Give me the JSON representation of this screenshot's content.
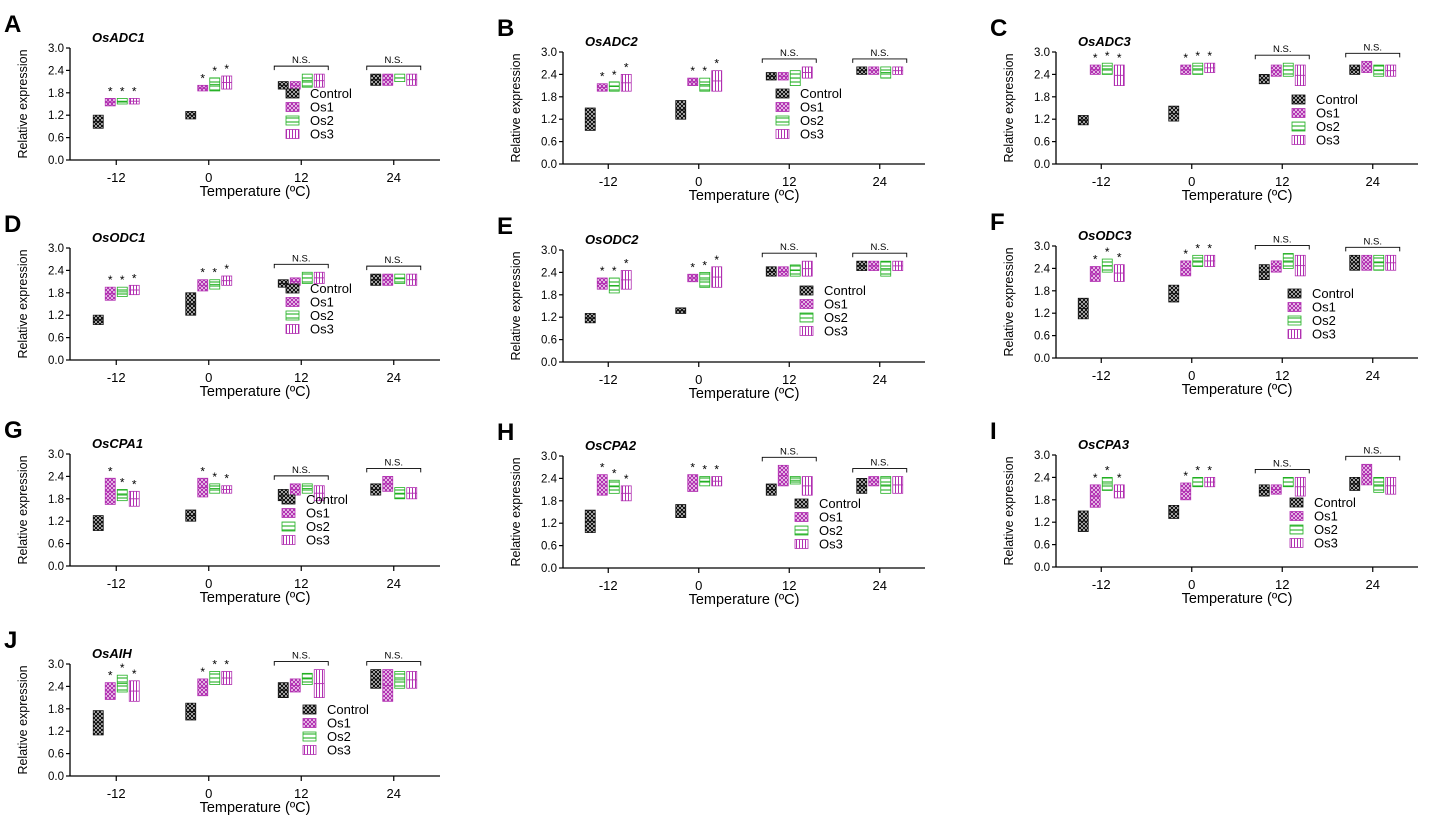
{
  "colors": {
    "control": "#111111",
    "os1": "#b12fb1",
    "os2": "#22b022",
    "os3": "#b12fb1",
    "axis": "#000000"
  },
  "common": {
    "ylabel": "Relative expression",
    "xlabel": "Temperature (ºC)",
    "categories": [
      "-12",
      "0",
      "12",
      "24"
    ],
    "yticks": [
      "0.0",
      "0.6",
      "1.2",
      "1.8",
      "2.4",
      "3.0"
    ],
    "ylim": [
      0,
      3.0
    ],
    "legend": [
      "Control",
      "Os1",
      "Os2",
      "Os3"
    ],
    "sig_mark": "*",
    "ns_label": "N.S."
  },
  "chart_data": [
    {
      "type": "bar",
      "panel": "A",
      "title": "OsADC1",
      "categories": [
        "-12",
        "0",
        "12",
        "24"
      ],
      "series": [
        {
          "name": "Control",
          "values": [
            [
              0.85,
              1.2
            ],
            [
              1.1,
              1.3
            ],
            [
              1.9,
              2.1
            ],
            [
              2.0,
              2.3
            ]
          ]
        },
        {
          "name": "Os1",
          "values": [
            [
              1.45,
              1.65
            ],
            [
              1.85,
              2.0
            ],
            [
              1.9,
              2.1
            ],
            [
              2.0,
              2.3
            ]
          ]
        },
        {
          "name": "Os2",
          "values": [
            [
              1.5,
              1.65
            ],
            [
              1.85,
              2.2
            ],
            [
              1.95,
              2.3
            ],
            [
              2.1,
              2.3
            ]
          ]
        },
        {
          "name": "Os3",
          "values": [
            [
              1.5,
              1.65
            ],
            [
              1.9,
              2.25
            ],
            [
              1.95,
              2.3
            ],
            [
              2.0,
              2.3
            ]
          ]
        }
      ],
      "significance": [
        "*",
        "*",
        "N.S.",
        "N.S."
      ]
    },
    {
      "type": "bar",
      "panel": "B",
      "title": "OsADC2",
      "categories": [
        "-12",
        "0",
        "12",
        "24"
      ],
      "series": [
        {
          "name": "Control",
          "values": [
            [
              0.9,
              1.5
            ],
            [
              1.2,
              1.7
            ],
            [
              2.25,
              2.45
            ],
            [
              2.4,
              2.6
            ]
          ]
        },
        {
          "name": "Os1",
          "values": [
            [
              1.95,
              2.15
            ],
            [
              2.1,
              2.3
            ],
            [
              2.25,
              2.45
            ],
            [
              2.4,
              2.6
            ]
          ]
        },
        {
          "name": "Os2",
          "values": [
            [
              1.95,
              2.2
            ],
            [
              1.95,
              2.3
            ],
            [
              2.1,
              2.5
            ],
            [
              2.3,
              2.6
            ]
          ]
        },
        {
          "name": "Os3",
          "values": [
            [
              1.95,
              2.4
            ],
            [
              1.95,
              2.5
            ],
            [
              2.3,
              2.6
            ],
            [
              2.4,
              2.6
            ]
          ]
        }
      ],
      "significance": [
        "*",
        "*",
        "N.S.",
        "N.S."
      ]
    },
    {
      "type": "bar",
      "panel": "C",
      "title": "OsADC3",
      "categories": [
        "-12",
        "0",
        "12",
        "24"
      ],
      "series": [
        {
          "name": "Control",
          "values": [
            [
              1.05,
              1.3
            ],
            [
              1.15,
              1.55
            ],
            [
              2.15,
              2.4
            ],
            [
              2.4,
              2.65
            ]
          ]
        },
        {
          "name": "Os1",
          "values": [
            [
              2.4,
              2.65
            ],
            [
              2.4,
              2.65
            ],
            [
              2.35,
              2.65
            ],
            [
              2.45,
              2.75
            ]
          ]
        },
        {
          "name": "Os2",
          "values": [
            [
              2.4,
              2.7
            ],
            [
              2.4,
              2.7
            ],
            [
              2.35,
              2.7
            ],
            [
              2.35,
              2.65
            ]
          ]
        },
        {
          "name": "Os3",
          "values": [
            [
              2.1,
              2.65
            ],
            [
              2.45,
              2.7
            ],
            [
              2.1,
              2.65
            ],
            [
              2.35,
              2.65
            ]
          ]
        }
      ],
      "significance": [
        "*",
        "*",
        "N.S.",
        "N.S."
      ]
    },
    {
      "type": "bar",
      "panel": "D",
      "title": "OsODC1",
      "categories": [
        "-12",
        "0",
        "12",
        "24"
      ],
      "series": [
        {
          "name": "Control",
          "values": [
            [
              0.95,
              1.2
            ],
            [
              1.2,
              1.8
            ],
            [
              1.95,
              2.15
            ],
            [
              2.0,
              2.3
            ]
          ]
        },
        {
          "name": "Os1",
          "values": [
            [
              1.6,
              1.95
            ],
            [
              1.85,
              2.15
            ],
            [
              2.0,
              2.2
            ],
            [
              2.0,
              2.3
            ]
          ]
        },
        {
          "name": "Os2",
          "values": [
            [
              1.7,
              1.95
            ],
            [
              1.9,
              2.15
            ],
            [
              2.05,
              2.35
            ],
            [
              2.05,
              2.3
            ]
          ]
        },
        {
          "name": "Os3",
          "values": [
            [
              1.75,
              2.0
            ],
            [
              2.0,
              2.25
            ],
            [
              2.05,
              2.35
            ],
            [
              2.0,
              2.3
            ]
          ]
        }
      ],
      "significance": [
        "*",
        "*",
        "N.S.",
        "N.S."
      ]
    },
    {
      "type": "bar",
      "panel": "E",
      "title": "OsODC2",
      "categories": [
        "-12",
        "0",
        "12",
        "24"
      ],
      "series": [
        {
          "name": "Control",
          "values": [
            [
              1.05,
              1.3
            ],
            [
              1.3,
              1.45
            ],
            [
              2.3,
              2.55
            ],
            [
              2.45,
              2.7
            ]
          ]
        },
        {
          "name": "Os1",
          "values": [
            [
              1.95,
              2.25
            ],
            [
              2.15,
              2.35
            ],
            [
              2.3,
              2.55
            ],
            [
              2.45,
              2.7
            ]
          ]
        },
        {
          "name": "Os2",
          "values": [
            [
              1.85,
              2.25
            ],
            [
              2.0,
              2.4
            ],
            [
              2.3,
              2.6
            ],
            [
              2.3,
              2.7
            ]
          ]
        },
        {
          "name": "Os3",
          "values": [
            [
              1.95,
              2.45
            ],
            [
              2.0,
              2.55
            ],
            [
              2.3,
              2.7
            ],
            [
              2.45,
              2.7
            ]
          ]
        }
      ],
      "significance": [
        "*",
        "*",
        "N.S.",
        "N.S."
      ]
    },
    {
      "type": "bar",
      "panel": "F",
      "title": "OsODC3",
      "categories": [
        "-12",
        "0",
        "12",
        "24"
      ],
      "series": [
        {
          "name": "Control",
          "values": [
            [
              1.05,
              1.6
            ],
            [
              1.5,
              1.95
            ],
            [
              2.1,
              2.5
            ],
            [
              2.35,
              2.75
            ]
          ]
        },
        {
          "name": "Os1",
          "values": [
            [
              2.05,
              2.45
            ],
            [
              2.2,
              2.6
            ],
            [
              2.3,
              2.6
            ],
            [
              2.35,
              2.75
            ]
          ]
        },
        {
          "name": "Os2",
          "values": [
            [
              2.3,
              2.65
            ],
            [
              2.45,
              2.75
            ],
            [
              2.4,
              2.8
            ],
            [
              2.35,
              2.75
            ]
          ]
        },
        {
          "name": "Os3",
          "values": [
            [
              2.05,
              2.5
            ],
            [
              2.45,
              2.75
            ],
            [
              2.2,
              2.75
            ],
            [
              2.35,
              2.75
            ]
          ]
        }
      ],
      "significance": [
        "*",
        "*",
        "N.S.",
        "N.S."
      ]
    },
    {
      "type": "bar",
      "panel": "G",
      "title": "OsCPA1",
      "categories": [
        "-12",
        "0",
        "12",
        "24"
      ],
      "series": [
        {
          "name": "Control",
          "values": [
            [
              0.95,
              1.35
            ],
            [
              1.2,
              1.5
            ],
            [
              1.75,
              2.05
            ],
            [
              1.9,
              2.2
            ]
          ]
        },
        {
          "name": "Os1",
          "values": [
            [
              1.65,
              2.35
            ],
            [
              1.85,
              2.35
            ],
            [
              1.9,
              2.2
            ],
            [
              2.0,
              2.4
            ]
          ]
        },
        {
          "name": "Os2",
          "values": [
            [
              1.75,
              2.05
            ],
            [
              1.95,
              2.2
            ],
            [
              1.95,
              2.2
            ],
            [
              1.8,
              2.1
            ]
          ]
        },
        {
          "name": "Os3",
          "values": [
            [
              1.6,
              2.0
            ],
            [
              1.95,
              2.15
            ],
            [
              1.75,
              2.15
            ],
            [
              1.8,
              2.1
            ]
          ]
        }
      ],
      "significance": [
        "*",
        "*",
        "N.S.",
        "N.S."
      ]
    },
    {
      "type": "bar",
      "panel": "H",
      "title": "OsCPA2",
      "categories": [
        "-12",
        "0",
        "12",
        "24"
      ],
      "series": [
        {
          "name": "Control",
          "values": [
            [
              0.95,
              1.55
            ],
            [
              1.35,
              1.7
            ],
            [
              1.95,
              2.25
            ],
            [
              2.0,
              2.4
            ]
          ]
        },
        {
          "name": "Os1",
          "values": [
            [
              1.95,
              2.5
            ],
            [
              2.05,
              2.5
            ],
            [
              2.2,
              2.75
            ],
            [
              2.2,
              2.45
            ]
          ]
        },
        {
          "name": "Os2",
          "values": [
            [
              2.0,
              2.35
            ],
            [
              2.2,
              2.45
            ],
            [
              2.25,
              2.45
            ],
            [
              2.0,
              2.45
            ]
          ]
        },
        {
          "name": "Os3",
          "values": [
            [
              1.8,
              2.2
            ],
            [
              2.2,
              2.45
            ],
            [
              1.95,
              2.45
            ],
            [
              2.0,
              2.45
            ]
          ]
        }
      ],
      "significance": [
        "*",
        "*",
        "N.S.",
        "N.S."
      ]
    },
    {
      "type": "bar",
      "panel": "I",
      "title": "OsCPA3",
      "categories": [
        "-12",
        "0",
        "12",
        "24"
      ],
      "series": [
        {
          "name": "Control",
          "values": [
            [
              0.95,
              1.5
            ],
            [
              1.3,
              1.65
            ],
            [
              1.9,
              2.2
            ],
            [
              2.05,
              2.4
            ]
          ]
        },
        {
          "name": "Os1",
          "values": [
            [
              1.6,
              2.2
            ],
            [
              1.8,
              2.25
            ],
            [
              1.95,
              2.2
            ],
            [
              2.2,
              2.75
            ]
          ]
        },
        {
          "name": "Os2",
          "values": [
            [
              2.05,
              2.4
            ],
            [
              2.15,
              2.4
            ],
            [
              2.15,
              2.4
            ],
            [
              2.0,
              2.4
            ]
          ]
        },
        {
          "name": "Os3",
          "values": [
            [
              1.85,
              2.2
            ],
            [
              2.15,
              2.4
            ],
            [
              1.9,
              2.4
            ],
            [
              1.95,
              2.4
            ]
          ]
        }
      ],
      "significance": [
        "*",
        "*",
        "N.S.",
        "N.S."
      ]
    },
    {
      "type": "bar",
      "panel": "J",
      "title": "OsAIH",
      "categories": [
        "-12",
        "0",
        "12",
        "24"
      ],
      "series": [
        {
          "name": "Control",
          "values": [
            [
              1.1,
              1.75
            ],
            [
              1.5,
              1.95
            ],
            [
              2.1,
              2.5
            ],
            [
              2.35,
              2.85
            ]
          ]
        },
        {
          "name": "Os1",
          "values": [
            [
              2.05,
              2.5
            ],
            [
              2.15,
              2.6
            ],
            [
              2.25,
              2.6
            ],
            [
              2.0,
              2.85
            ]
          ]
        },
        {
          "name": "Os2",
          "values": [
            [
              2.25,
              2.7
            ],
            [
              2.45,
              2.8
            ],
            [
              2.45,
              2.75
            ],
            [
              2.35,
              2.8
            ]
          ]
        },
        {
          "name": "Os3",
          "values": [
            [
              2.0,
              2.55
            ],
            [
              2.45,
              2.8
            ],
            [
              2.1,
              2.85
            ],
            [
              2.35,
              2.8
            ]
          ]
        }
      ],
      "significance": [
        "*",
        "*",
        "N.S.",
        "N.S."
      ]
    }
  ]
}
